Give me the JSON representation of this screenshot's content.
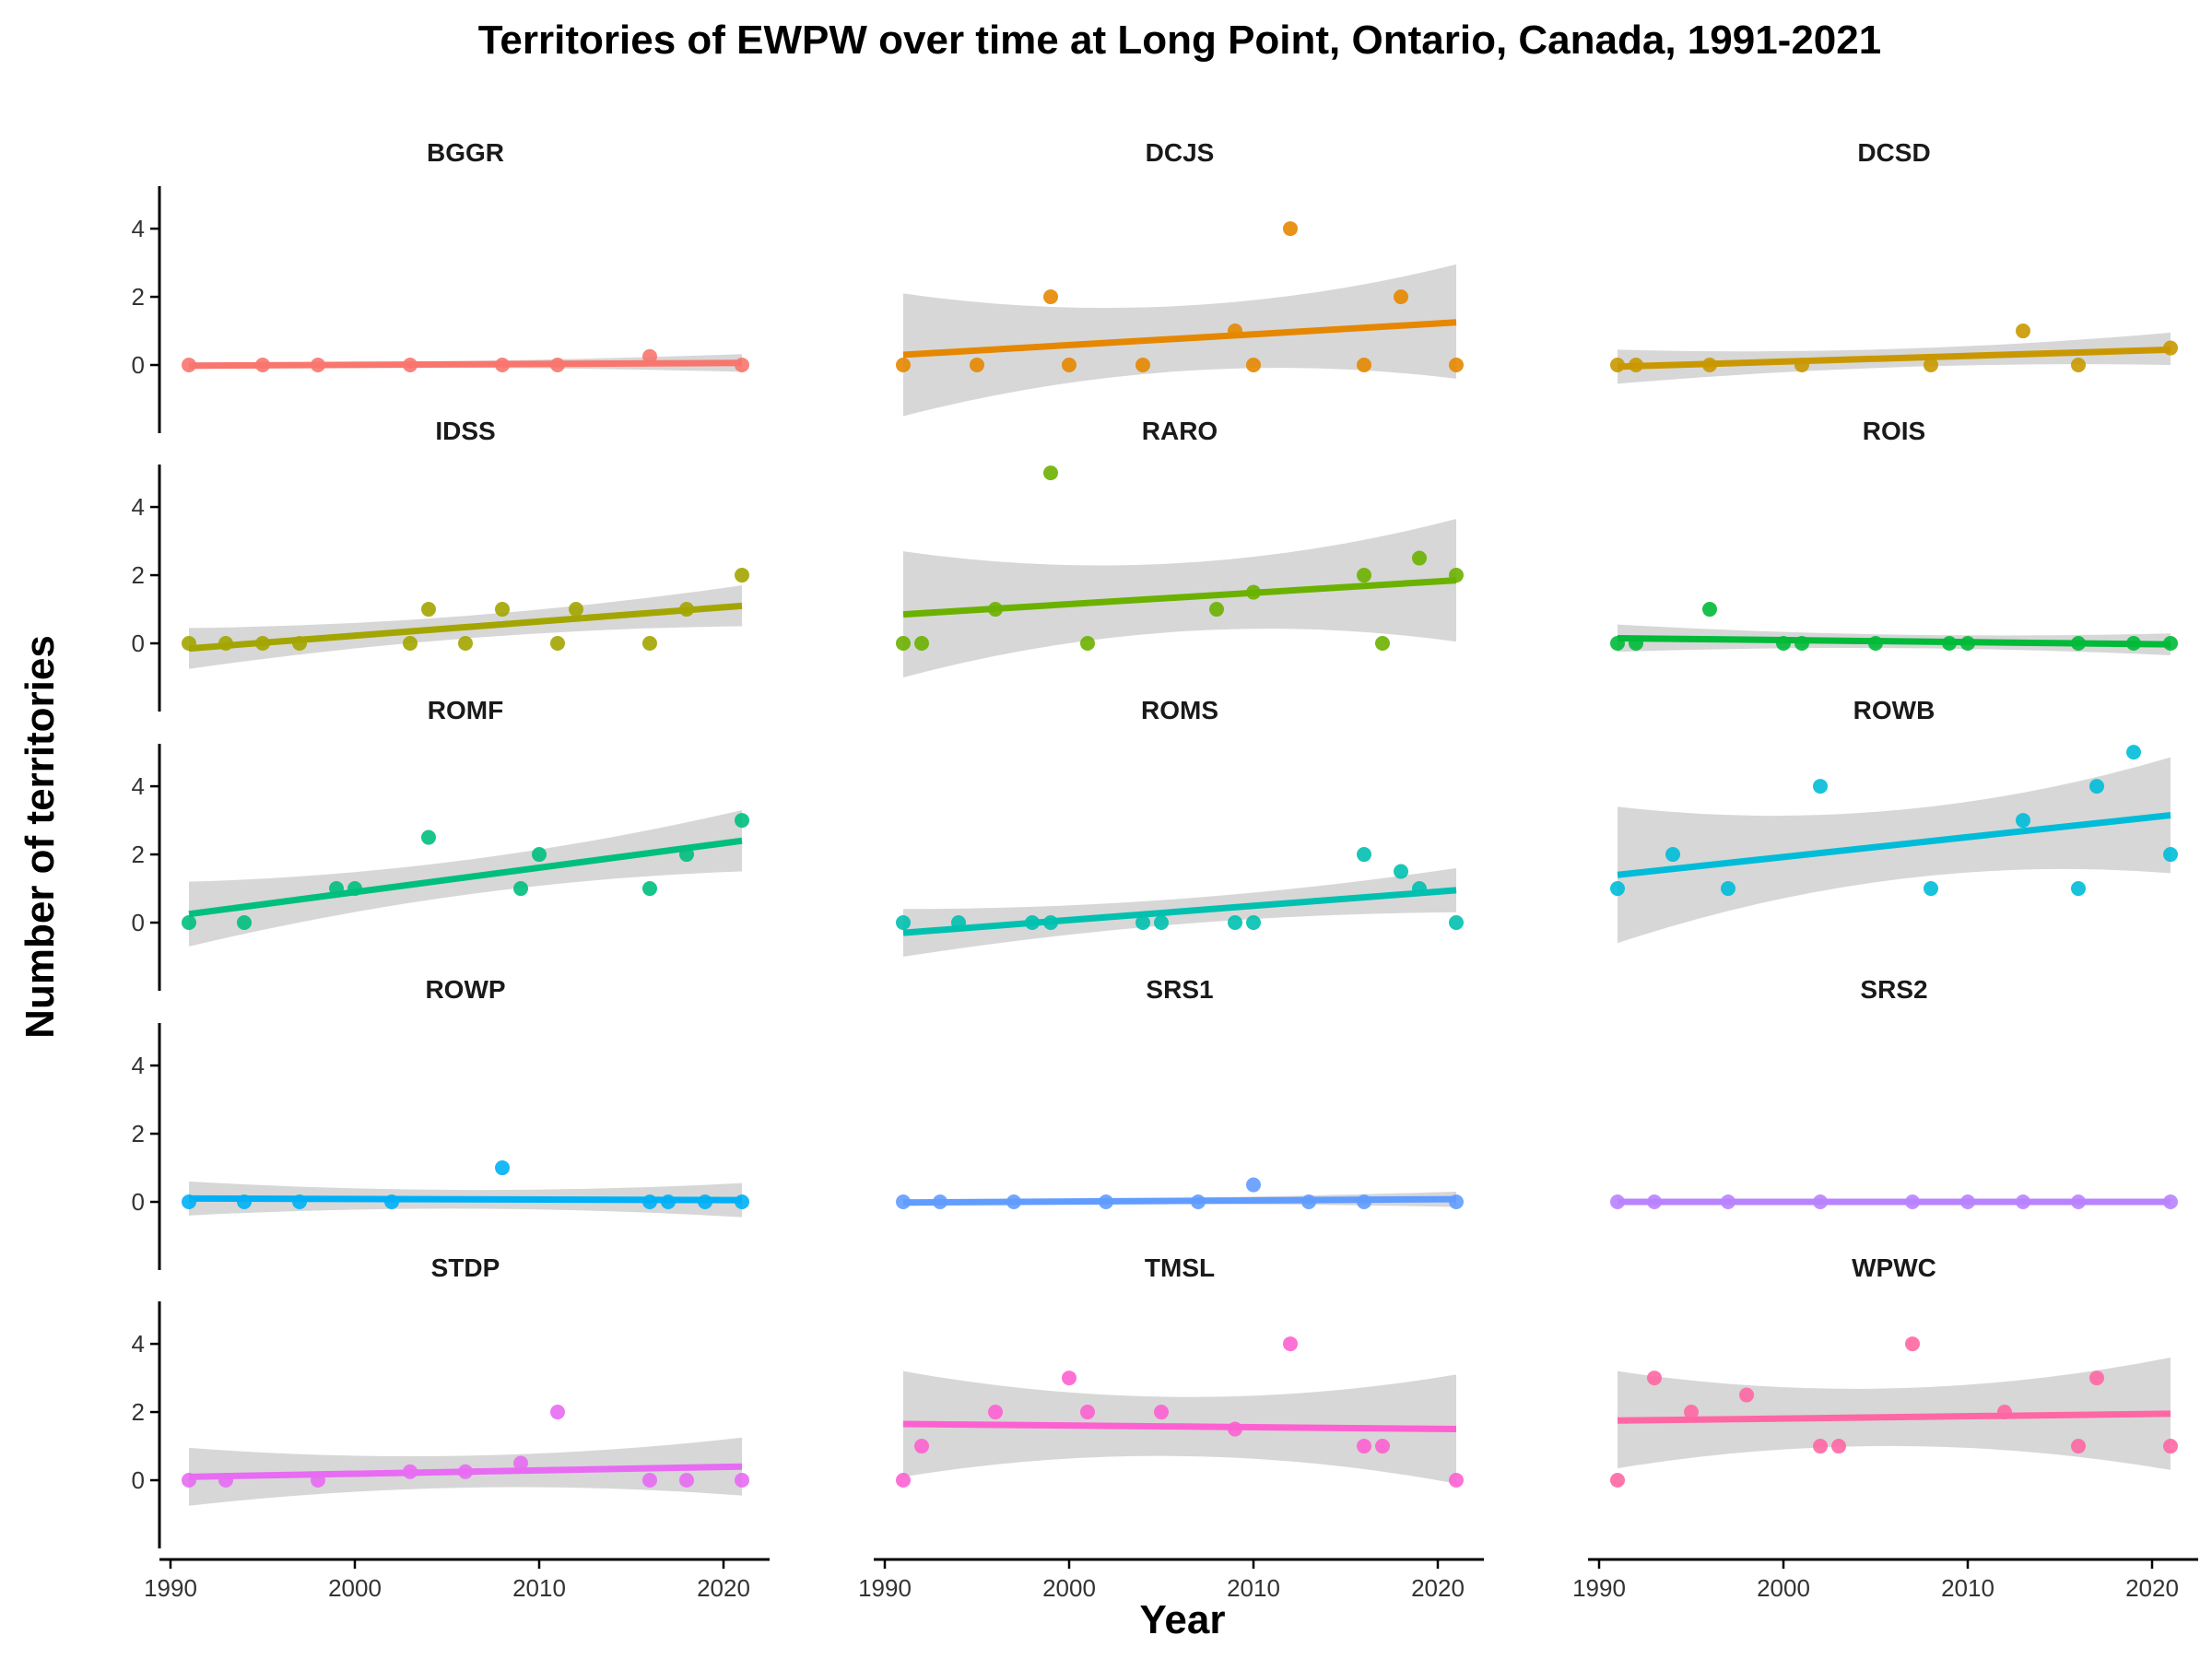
{
  "chart_data": {
    "type": "scatter",
    "title": "Territories of EWPW over time at Long Point, Ontario, Canada, 1991-2021",
    "xlabel": "Year",
    "ylabel": "Number of territories",
    "xlim": [
      1989.5,
      2022.5
    ],
    "ylim": [
      -2,
      5.3
    ],
    "xticks": [
      1990,
      2000,
      2010,
      2020
    ],
    "yticks": [
      0,
      2,
      4
    ],
    "grid": false,
    "legend": "none",
    "panels": [
      {
        "name": "BGGR",
        "color": "#F8766D",
        "x": [
          1991,
          1995,
          1998,
          2003,
          2008,
          2011,
          2016,
          2021
        ],
        "y": [
          0,
          0,
          0,
          0,
          0,
          0,
          0.25,
          0
        ],
        "trend": [
          -0.02,
          0.06
        ],
        "band": [
          [
            -0.12,
            0.08
          ],
          [
            -0.2,
            0.32
          ]
        ]
      },
      {
        "name": "DCJS",
        "color": "#E58700",
        "x": [
          1991,
          1995,
          1999,
          2000,
          2004,
          2009,
          2010,
          2012,
          2016,
          2018,
          2021
        ],
        "y": [
          0,
          0,
          2,
          0,
          0,
          1,
          0,
          4,
          0,
          2,
          0
        ],
        "trend": [
          0.3,
          1.25
        ],
        "band": [
          [
            -1.5,
            2.1
          ],
          [
            -0.4,
            2.95
          ]
        ]
      },
      {
        "name": "DCSD",
        "color": "#C99800",
        "x": [
          1991,
          1992,
          1996,
          2001,
          2008,
          2013,
          2016,
          2021
        ],
        "y": [
          0,
          0,
          0,
          0,
          0,
          1,
          0,
          0.5
        ],
        "trend": [
          -0.05,
          0.45
        ],
        "band": [
          [
            -0.55,
            0.45
          ],
          [
            0.0,
            0.95
          ]
        ]
      },
      {
        "name": "IDSS",
        "color": "#A3A500",
        "x": [
          1991,
          1993,
          1995,
          1997,
          2003,
          2004,
          2006,
          2008,
          2011,
          2012,
          2016,
          2018,
          2021
        ],
        "y": [
          0,
          0,
          0,
          0,
          0,
          1,
          0,
          1,
          0,
          1,
          0,
          1,
          2
        ],
        "trend": [
          -0.15,
          1.1
        ],
        "band": [
          [
            -0.75,
            0.45
          ],
          [
            0.5,
            1.7
          ]
        ]
      },
      {
        "name": "RARO",
        "color": "#6BB100",
        "x": [
          1991,
          1992,
          1996,
          1999,
          2001,
          2008,
          2010,
          2016,
          2017,
          2019,
          2021
        ],
        "y": [
          0,
          0,
          1,
          5,
          0,
          1,
          1.5,
          2,
          0,
          2.5,
          2
        ],
        "trend": [
          0.85,
          1.85
        ],
        "band": [
          [
            -1.0,
            2.7
          ],
          [
            0.05,
            3.65
          ]
        ]
      },
      {
        "name": "ROIS",
        "color": "#00BA38",
        "x": [
          1991,
          1992,
          1996,
          2000,
          2001,
          2005,
          2009,
          2010,
          2016,
          2019,
          2021
        ],
        "y": [
          0,
          0,
          1,
          0,
          0,
          0,
          0,
          0,
          0,
          0,
          0
        ],
        "trend": [
          0.15,
          -0.03
        ],
        "band": [
          [
            -0.25,
            0.55
          ],
          [
            -0.35,
            0.29
          ]
        ]
      },
      {
        "name": "ROMF",
        "color": "#00BF7D",
        "x": [
          1991,
          1994,
          1999,
          2000,
          2004,
          2009,
          2010,
          2016,
          2018,
          2021
        ],
        "y": [
          0,
          0,
          1,
          1,
          2.5,
          1,
          2,
          1,
          2,
          3
        ],
        "trend": [
          0.25,
          2.4
        ],
        "band": [
          [
            -0.7,
            1.2
          ],
          [
            1.5,
            3.3
          ]
        ]
      },
      {
        "name": "ROMS",
        "color": "#00C0AF",
        "x": [
          1991,
          1994,
          1998,
          1999,
          2004,
          2005,
          2009,
          2010,
          2016,
          2018,
          2019,
          2021
        ],
        "y": [
          0,
          0,
          0,
          0,
          0,
          0,
          0,
          0,
          2,
          1.5,
          1,
          0
        ],
        "trend": [
          -0.3,
          0.95
        ],
        "band": [
          [
            -1.0,
            0.4
          ],
          [
            0.3,
            1.6
          ]
        ]
      },
      {
        "name": "ROWB",
        "color": "#00BCD8",
        "x": [
          1991,
          1994,
          1997,
          2002,
          2008,
          2013,
          2016,
          2017,
          2019,
          2021
        ],
        "y": [
          1,
          2,
          1,
          4,
          1,
          3,
          1,
          4,
          5,
          2
        ],
        "trend": [
          1.4,
          3.15
        ],
        "band": [
          [
            -0.6,
            3.4
          ],
          [
            1.45,
            4.85
          ]
        ]
      },
      {
        "name": "ROWP",
        "color": "#00B0F6",
        "x": [
          1991,
          1994,
          1997,
          2002,
          2008,
          2016,
          2017,
          2019,
          2021
        ],
        "y": [
          0,
          0,
          0,
          0,
          1,
          0,
          0,
          0,
          0
        ],
        "trend": [
          0.1,
          0.05
        ],
        "band": [
          [
            -0.4,
            0.6
          ],
          [
            -0.45,
            0.55
          ]
        ]
      },
      {
        "name": "SRS1",
        "color": "#619CFF",
        "x": [
          1991,
          1993,
          1997,
          2002,
          2007,
          2010,
          2013,
          2016,
          2021
        ],
        "y": [
          0,
          0,
          0,
          0,
          0,
          0.5,
          0,
          0,
          0
        ],
        "trend": [
          -0.02,
          0.08
        ],
        "band": [
          [
            -0.12,
            0.08
          ],
          [
            -0.15,
            0.3
          ]
        ]
      },
      {
        "name": "SRS2",
        "color": "#B983FF",
        "x": [
          1991,
          1993,
          1997,
          2002,
          2007,
          2010,
          2013,
          2016,
          2021
        ],
        "y": [
          0,
          0,
          0,
          0,
          0,
          0,
          0,
          0,
          0
        ],
        "trend": [
          0,
          0
        ],
        "band": [
          [
            0,
            0
          ],
          [
            0,
            0
          ]
        ]
      },
      {
        "name": "STDP",
        "color": "#E76BF3",
        "x": [
          1991,
          1993,
          1998,
          2003,
          2006,
          2009,
          2011,
          2016,
          2018,
          2021
        ],
        "y": [
          0,
          0,
          0,
          0.25,
          0.25,
          0.5,
          2,
          0,
          0,
          0
        ],
        "trend": [
          0.1,
          0.4
        ],
        "band": [
          [
            -0.75,
            0.95
          ],
          [
            -0.45,
            1.25
          ]
        ]
      },
      {
        "name": "TMSL",
        "color": "#FD61D1",
        "x": [
          1991,
          1992,
          1996,
          2000,
          2001,
          2005,
          2009,
          2012,
          2016,
          2017,
          2021
        ],
        "y": [
          0,
          1,
          2,
          3,
          2,
          2,
          1.5,
          4,
          1,
          1,
          0
        ],
        "trend": [
          1.65,
          1.5
        ],
        "band": [
          [
            0.1,
            3.2
          ],
          [
            -0.1,
            3.1
          ]
        ]
      },
      {
        "name": "WPWC",
        "color": "#FF67A4",
        "x": [
          1991,
          1993,
          1995,
          1998,
          2002,
          2003,
          2007,
          2012,
          2016,
          2017,
          2021
        ],
        "y": [
          0,
          3,
          2,
          2.5,
          1,
          1,
          4,
          2,
          1,
          3,
          1
        ],
        "trend": [
          1.75,
          1.95
        ],
        "band": [
          [
            0.35,
            3.2
          ],
          [
            0.3,
            3.6
          ]
        ]
      }
    ]
  }
}
